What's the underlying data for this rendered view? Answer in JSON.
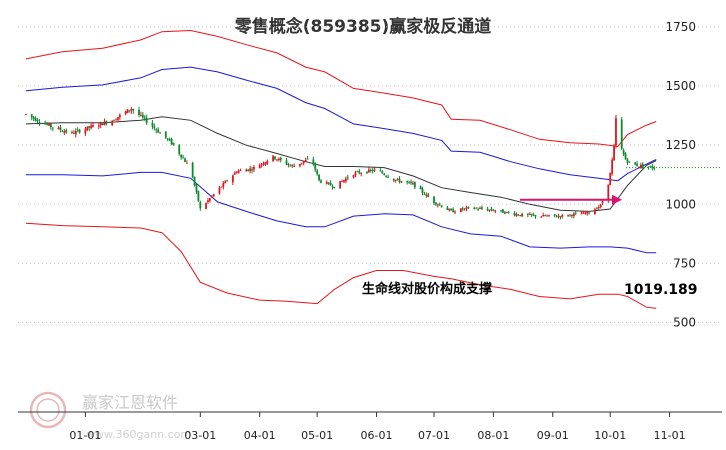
{
  "header": {
    "title": "零售概念(859385)赢家极反通道"
  },
  "watermark": {
    "name": "赢家江恩软件",
    "url": "www.360gann.com",
    "logo_color": "#e8b8b8"
  },
  "colors": {
    "red": "#e8141a",
    "blue": "#1a1ad8",
    "black": "#333333",
    "up": "#e0141a",
    "down": "#0a8a2a",
    "arrow": "#d8146e",
    "dotted": "#0a8a2a"
  },
  "chart_data": {
    "type": "candlestick",
    "title": "零售概念(859385)赢家极反通道",
    "y_ticks": [
      "1750",
      "1500",
      "1250",
      "1000",
      "750",
      "500"
    ],
    "y_tick_values": [
      1750,
      1500,
      1250,
      1000,
      750,
      500
    ],
    "ylim": [
      460,
      1880
    ],
    "x_ticks": [
      "01-01",
      "03-01",
      "04-01",
      "05-01",
      "06-01",
      "07-01",
      "08-01",
      "09-01",
      "10-01",
      "11-01"
    ],
    "x_tick_dates": [
      "2024-01-01",
      "2024-03-01",
      "2024-04-01",
      "2024-05-01",
      "2024-06-01",
      "2024-07-01",
      "2024-08-01",
      "2024-09-01",
      "2024-10-01",
      "2024-11-01"
    ],
    "x_start": "2023-12-01",
    "x_end": "2024-11-20",
    "grid": "horizontal-dotted",
    "series": [
      {
        "name": "",
        "color": "#e8141a",
        "points": [
          [
            "2023-12-01",
            1615
          ],
          [
            "2023-12-20",
            1645
          ],
          [
            "2024-01-10",
            1660
          ],
          [
            "2024-01-30",
            1695
          ],
          [
            "2024-02-10",
            1730
          ],
          [
            "2024-02-25",
            1735
          ],
          [
            "2024-03-10",
            1710
          ],
          [
            "2024-03-25",
            1675
          ],
          [
            "2024-04-10",
            1640
          ],
          [
            "2024-04-25",
            1580
          ],
          [
            "2024-05-05",
            1560
          ],
          [
            "2024-05-20",
            1490
          ],
          [
            "2024-06-05",
            1470
          ],
          [
            "2024-06-20",
            1450
          ],
          [
            "2024-07-05",
            1420
          ],
          [
            "2024-07-10",
            1360
          ],
          [
            "2024-07-25",
            1355
          ],
          [
            "2024-08-10",
            1315
          ],
          [
            "2024-08-25",
            1275
          ],
          [
            "2024-09-10",
            1260
          ],
          [
            "2024-09-25",
            1255
          ],
          [
            "2024-10-05",
            1245
          ],
          [
            "2024-10-10",
            1295
          ],
          [
            "2024-10-20",
            1335
          ],
          [
            "2024-10-25",
            1350
          ]
        ]
      },
      {
        "name": "",
        "color": "#1a1ad8",
        "points": [
          [
            "2023-12-01",
            1480
          ],
          [
            "2023-12-20",
            1495
          ],
          [
            "2024-01-10",
            1505
          ],
          [
            "2024-01-30",
            1535
          ],
          [
            "2024-02-10",
            1570
          ],
          [
            "2024-02-25",
            1580
          ],
          [
            "2024-03-10",
            1560
          ],
          [
            "2024-03-25",
            1525
          ],
          [
            "2024-04-10",
            1490
          ],
          [
            "2024-04-25",
            1430
          ],
          [
            "2024-05-05",
            1405
          ],
          [
            "2024-05-20",
            1340
          ],
          [
            "2024-06-05",
            1320
          ],
          [
            "2024-06-20",
            1300
          ],
          [
            "2024-07-05",
            1270
          ],
          [
            "2024-07-10",
            1225
          ],
          [
            "2024-07-25",
            1220
          ],
          [
            "2024-08-10",
            1180
          ],
          [
            "2024-08-25",
            1150
          ],
          [
            "2024-09-10",
            1125
          ],
          [
            "2024-09-25",
            1110
          ],
          [
            "2024-10-05",
            1100
          ],
          [
            "2024-10-10",
            1130
          ],
          [
            "2024-10-20",
            1170
          ],
          [
            "2024-10-25",
            1190
          ]
        ]
      },
      {
        "name": "",
        "color": "#333333",
        "points": [
          [
            "2023-12-01",
            1340
          ],
          [
            "2023-12-20",
            1345
          ],
          [
            "2024-01-10",
            1345
          ],
          [
            "2024-01-30",
            1355
          ],
          [
            "2024-02-10",
            1370
          ],
          [
            "2024-02-25",
            1355
          ],
          [
            "2024-03-10",
            1300
          ],
          [
            "2024-03-25",
            1250
          ],
          [
            "2024-04-10",
            1215
          ],
          [
            "2024-04-25",
            1180
          ],
          [
            "2024-05-05",
            1160
          ],
          [
            "2024-05-20",
            1160
          ],
          [
            "2024-06-05",
            1155
          ],
          [
            "2024-06-20",
            1120
          ],
          [
            "2024-07-05",
            1070
          ],
          [
            "2024-07-20",
            1050
          ],
          [
            "2024-08-05",
            1030
          ],
          [
            "2024-08-20",
            1000
          ],
          [
            "2024-09-05",
            975
          ],
          [
            "2024-09-20",
            970
          ],
          [
            "2024-10-01",
            980
          ],
          [
            "2024-10-10",
            1080
          ],
          [
            "2024-10-20",
            1165
          ],
          [
            "2024-10-25",
            1185
          ]
        ]
      },
      {
        "name": "",
        "color": "#1a1ad8",
        "points": [
          [
            "2023-12-01",
            1125
          ],
          [
            "2023-12-20",
            1125
          ],
          [
            "2024-01-10",
            1120
          ],
          [
            "2024-01-30",
            1135
          ],
          [
            "2024-02-10",
            1135
          ],
          [
            "2024-02-25",
            1110
          ],
          [
            "2024-03-10",
            1010
          ],
          [
            "2024-03-25",
            970
          ],
          [
            "2024-04-10",
            930
          ],
          [
            "2024-04-25",
            905
          ],
          [
            "2024-05-05",
            905
          ],
          [
            "2024-05-20",
            950
          ],
          [
            "2024-06-05",
            960
          ],
          [
            "2024-06-20",
            955
          ],
          [
            "2024-07-05",
            905
          ],
          [
            "2024-07-20",
            875
          ],
          [
            "2024-08-05",
            865
          ],
          [
            "2024-08-20",
            820
          ],
          [
            "2024-09-05",
            815
          ],
          [
            "2024-09-20",
            820
          ],
          [
            "2024-10-01",
            820
          ],
          [
            "2024-10-10",
            815
          ],
          [
            "2024-10-20",
            795
          ],
          [
            "2024-10-25",
            795
          ]
        ]
      },
      {
        "name": "",
        "color": "#e8141a",
        "points": [
          [
            "2023-12-01",
            920
          ],
          [
            "2023-12-20",
            910
          ],
          [
            "2024-01-10",
            905
          ],
          [
            "2024-01-30",
            900
          ],
          [
            "2024-02-10",
            880
          ],
          [
            "2024-02-20",
            800
          ],
          [
            "2024-03-01",
            670
          ],
          [
            "2024-03-15",
            625
          ],
          [
            "2024-04-01",
            595
          ],
          [
            "2024-04-15",
            590
          ],
          [
            "2024-05-01",
            580
          ],
          [
            "2024-05-10",
            640
          ],
          [
            "2024-05-20",
            690
          ],
          [
            "2024-06-01",
            720
          ],
          [
            "2024-06-15",
            720
          ],
          [
            "2024-07-01",
            695
          ],
          [
            "2024-07-10",
            685
          ],
          [
            "2024-07-25",
            660
          ],
          [
            "2024-08-10",
            640
          ],
          [
            "2024-08-25",
            610
          ],
          [
            "2024-09-10",
            600
          ],
          [
            "2024-09-25",
            620
          ],
          [
            "2024-10-05",
            620
          ],
          [
            "2024-10-10",
            610
          ],
          [
            "2024-10-20",
            565
          ],
          [
            "2024-10-25",
            560
          ]
        ]
      }
    ],
    "price_path": [
      [
        "2023-12-01",
        1380
      ],
      [
        "2023-12-15",
        1325
      ],
      [
        "2023-12-25",
        1300
      ],
      [
        "2024-01-05",
        1330
      ],
      [
        "2024-01-15",
        1355
      ],
      [
        "2024-01-25",
        1405
      ],
      [
        "2024-02-05",
        1330
      ],
      [
        "2024-02-15",
        1260
      ],
      [
        "2024-02-25",
        1150
      ],
      [
        "2024-03-01",
        980
      ],
      [
        "2024-03-10",
        1060
      ],
      [
        "2024-03-20",
        1140
      ],
      [
        "2024-03-28",
        1150
      ],
      [
        "2024-04-08",
        1200
      ],
      [
        "2024-04-18",
        1160
      ],
      [
        "2024-04-28",
        1195
      ],
      [
        "2024-05-02",
        1100
      ],
      [
        "2024-05-10",
        1075
      ],
      [
        "2024-05-20",
        1130
      ],
      [
        "2024-06-01",
        1145
      ],
      [
        "2024-06-10",
        1105
      ],
      [
        "2024-06-20",
        1085
      ],
      [
        "2024-07-01",
        1010
      ],
      [
        "2024-07-10",
        970
      ],
      [
        "2024-07-20",
        985
      ],
      [
        "2024-08-01",
        975
      ],
      [
        "2024-08-15",
        955
      ],
      [
        "2024-08-25",
        950
      ],
      [
        "2024-09-05",
        950
      ],
      [
        "2024-09-20",
        965
      ],
      [
        "2024-09-26",
        995
      ],
      [
        "2024-09-29",
        1050
      ],
      [
        "2024-10-01",
        1130
      ],
      [
        "2024-10-03",
        1240
      ],
      [
        "2024-10-04",
        1360
      ],
      [
        "2024-10-06",
        1250
      ],
      [
        "2024-10-09",
        1190
      ],
      [
        "2024-10-12",
        1170
      ],
      [
        "2024-10-18",
        1160
      ],
      [
        "2024-10-24",
        1155
      ]
    ],
    "last_close": 1155,
    "support_level": 1019.189,
    "support_label": "1019.189",
    "annotation": "生命线对股价构成支撑"
  }
}
